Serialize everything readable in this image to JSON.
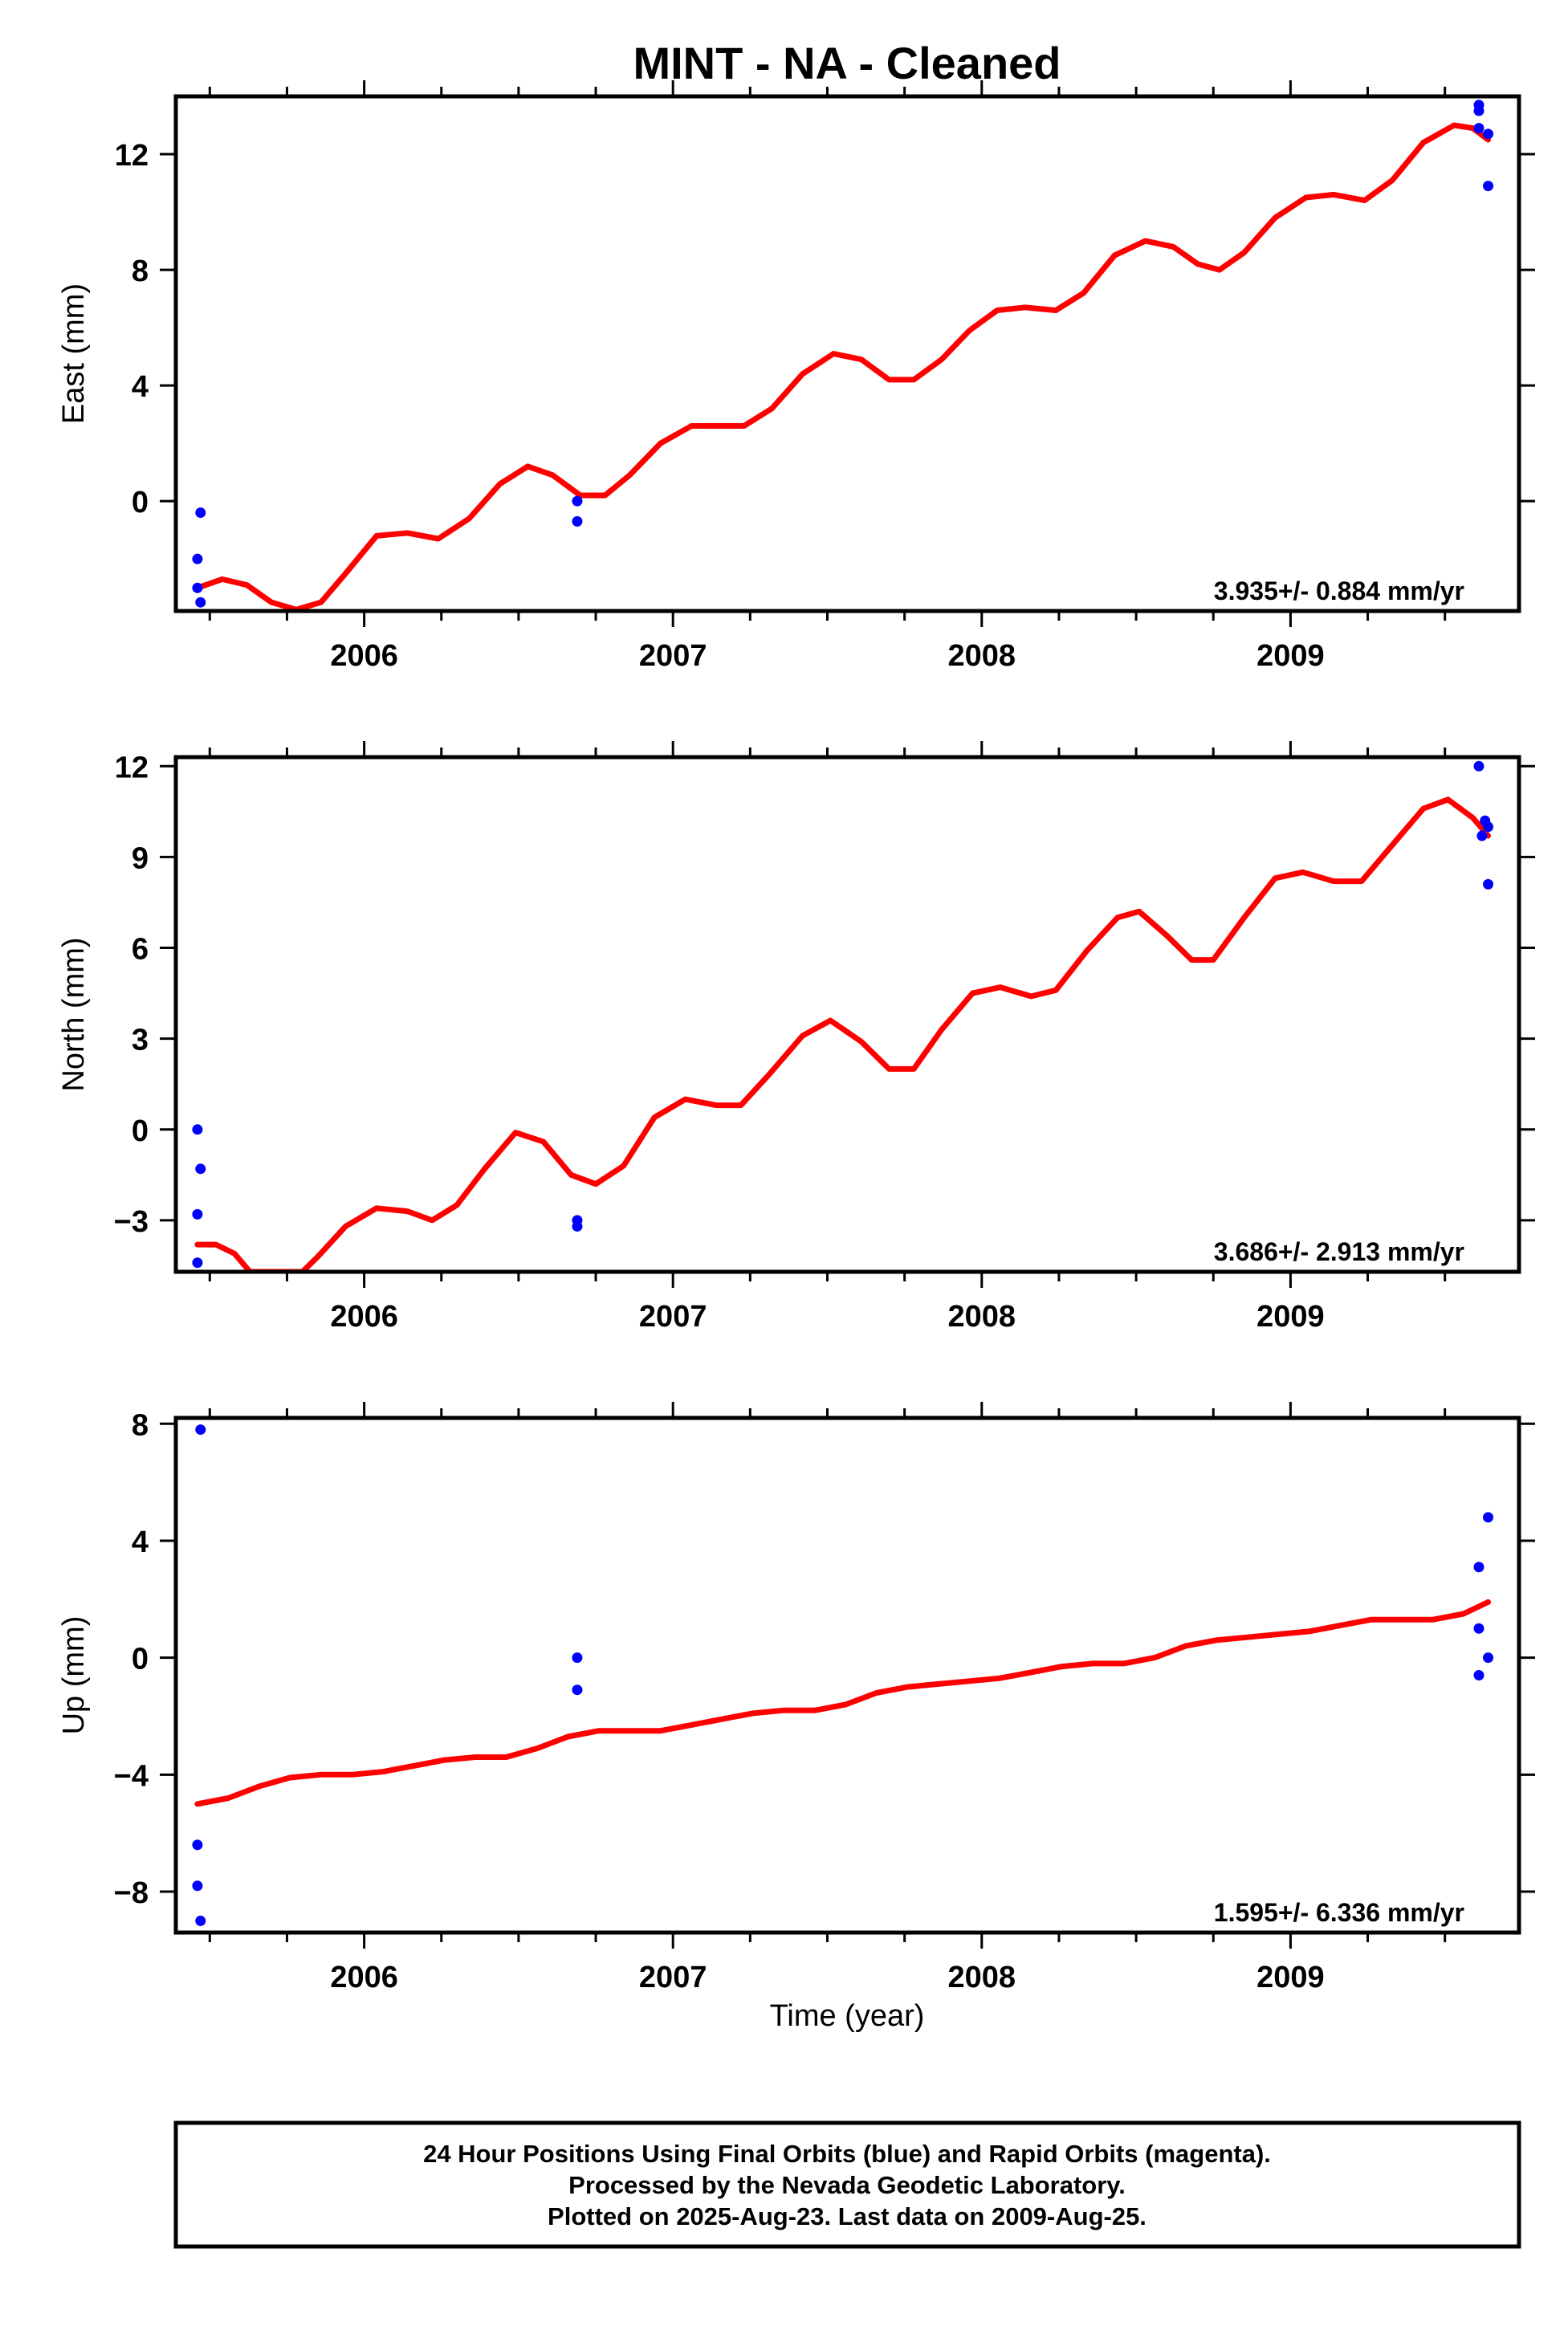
{
  "title": "MINT  - NA - Cleaned",
  "xlabel": "Time (year)",
  "footer": [
    "24 Hour Positions Using Final Orbits (blue) and Rapid Orbits (magenta).",
    "Processed by the Nevada Geodetic Laboratory.",
    "Plotted on 2025-Aug-23. Last data on 2009-Aug-25."
  ],
  "colors": {
    "final_orbits": "#0000ff",
    "model_fit": "#ff0000",
    "frame": "#000000"
  },
  "chart_data": [
    {
      "type": "scatter",
      "ylabel": "East (mm)",
      "rate_label": "3.935+/- 0.884 mm/yr",
      "xlim": [
        2005.39,
        2009.74
      ],
      "ylim": [
        -3.8,
        14.0
      ],
      "x_ticks": [
        2006,
        2007,
        2008,
        2009
      ],
      "y_ticks": [
        12,
        8,
        4,
        0
      ],
      "points": [
        [
          2005.47,
          -0.4
        ],
        [
          2005.46,
          -2.0
        ],
        [
          2005.46,
          -3.0
        ],
        [
          2005.47,
          -3.5
        ],
        [
          2006.69,
          0.0
        ],
        [
          2006.69,
          -0.7
        ],
        [
          2009.61,
          13.7
        ],
        [
          2009.61,
          13.5
        ],
        [
          2009.61,
          12.9
        ],
        [
          2009.64,
          12.7
        ],
        [
          2009.64,
          10.9
        ]
      ],
      "fit": [
        [
          2005.46,
          -3.0
        ],
        [
          2005.54,
          -2.7
        ],
        [
          2005.62,
          -2.9
        ],
        [
          2005.7,
          -3.5
        ],
        [
          2005.78,
          -3.75
        ],
        [
          2005.86,
          -3.5
        ],
        [
          2005.94,
          -2.5
        ],
        [
          2006.04,
          -1.2
        ],
        [
          2006.14,
          -1.1
        ],
        [
          2006.24,
          -1.3
        ],
        [
          2006.34,
          -0.6
        ],
        [
          2006.44,
          0.6
        ],
        [
          2006.53,
          1.2
        ],
        [
          2006.61,
          0.9
        ],
        [
          2006.7,
          0.2
        ],
        [
          2006.78,
          0.2
        ],
        [
          2006.86,
          0.9
        ],
        [
          2006.96,
          2.0
        ],
        [
          2007.06,
          2.6
        ],
        [
          2007.14,
          2.6
        ],
        [
          2007.23,
          2.6
        ],
        [
          2007.32,
          3.2
        ],
        [
          2007.42,
          4.4
        ],
        [
          2007.52,
          5.1
        ],
        [
          2007.61,
          4.9
        ],
        [
          2007.7,
          4.2
        ],
        [
          2007.78,
          4.2
        ],
        [
          2007.87,
          4.9
        ],
        [
          2007.96,
          5.9
        ],
        [
          2008.05,
          6.6
        ],
        [
          2008.14,
          6.7
        ],
        [
          2008.24,
          6.6
        ],
        [
          2008.33,
          7.2
        ],
        [
          2008.43,
          8.5
        ],
        [
          2008.53,
          9.0
        ],
        [
          2008.62,
          8.8
        ],
        [
          2008.7,
          8.2
        ],
        [
          2008.77,
          8.0
        ],
        [
          2008.85,
          8.6
        ],
        [
          2008.95,
          9.8
        ],
        [
          2009.05,
          10.5
        ],
        [
          2009.14,
          10.6
        ],
        [
          2009.24,
          10.4
        ],
        [
          2009.33,
          11.1
        ],
        [
          2009.43,
          12.4
        ],
        [
          2009.53,
          13.0
        ],
        [
          2009.59,
          12.9
        ],
        [
          2009.64,
          12.5
        ]
      ]
    },
    {
      "type": "scatter",
      "ylabel": "North (mm)",
      "rate_label": "3.686+/- 2.913 mm/yr",
      "xlim": [
        2005.39,
        2009.74
      ],
      "ylim": [
        -4.7,
        12.3
      ],
      "x_ticks": [
        2006,
        2007,
        2008,
        2009
      ],
      "y_ticks": [
        12,
        9,
        6,
        3,
        0,
        -3
      ],
      "points": [
        [
          2005.46,
          0.0
        ],
        [
          2005.47,
          -1.3
        ],
        [
          2005.46,
          -2.8
        ],
        [
          2005.46,
          -4.4
        ],
        [
          2006.69,
          -3.0
        ],
        [
          2006.69,
          -3.2
        ],
        [
          2009.61,
          12.0
        ],
        [
          2009.63,
          10.2
        ],
        [
          2009.64,
          10.0
        ],
        [
          2009.62,
          9.7
        ],
        [
          2009.64,
          8.1
        ]
      ],
      "fit": [
        [
          2005.46,
          -3.8
        ],
        [
          2005.52,
          -3.8
        ],
        [
          2005.58,
          -4.1
        ],
        [
          2005.63,
          -4.7
        ],
        [
          2005.8,
          -4.7
        ],
        [
          2005.85,
          -4.2
        ],
        [
          2005.94,
          -3.2
        ],
        [
          2006.04,
          -2.6
        ],
        [
          2006.14,
          -2.7
        ],
        [
          2006.22,
          -3.0
        ],
        [
          2006.3,
          -2.5
        ],
        [
          2006.39,
          -1.3
        ],
        [
          2006.49,
          -0.1
        ],
        [
          2006.58,
          -0.4
        ],
        [
          2006.67,
          -1.5
        ],
        [
          2006.75,
          -1.8
        ],
        [
          2006.84,
          -1.2
        ],
        [
          2006.94,
          0.4
        ],
        [
          2007.04,
          1.0
        ],
        [
          2007.14,
          0.8
        ],
        [
          2007.22,
          0.8
        ],
        [
          2007.31,
          1.8
        ],
        [
          2007.42,
          3.1
        ],
        [
          2007.51,
          3.6
        ],
        [
          2007.61,
          2.9
        ],
        [
          2007.7,
          2.0
        ],
        [
          2007.78,
          2.0
        ],
        [
          2007.87,
          3.3
        ],
        [
          2007.97,
          4.5
        ],
        [
          2008.06,
          4.7
        ],
        [
          2008.16,
          4.4
        ],
        [
          2008.24,
          4.6
        ],
        [
          2008.34,
          5.9
        ],
        [
          2008.44,
          7.0
        ],
        [
          2008.51,
          7.2
        ],
        [
          2008.6,
          6.4
        ],
        [
          2008.68,
          5.6
        ],
        [
          2008.75,
          5.6
        ],
        [
          2008.85,
          7.0
        ],
        [
          2008.95,
          8.3
        ],
        [
          2009.04,
          8.5
        ],
        [
          2009.14,
          8.2
        ],
        [
          2009.23,
          8.2
        ],
        [
          2009.33,
          9.4
        ],
        [
          2009.43,
          10.6
        ],
        [
          2009.51,
          10.9
        ],
        [
          2009.59,
          10.3
        ],
        [
          2009.64,
          9.7
        ]
      ]
    },
    {
      "type": "scatter",
      "ylabel": "Up (mm)",
      "rate_label": "1.595+/- 6.336 mm/yr",
      "xlim": [
        2005.39,
        2009.74
      ],
      "ylim": [
        -9.4,
        8.2
      ],
      "x_ticks": [
        2006,
        2007,
        2008,
        2009
      ],
      "y_ticks": [
        8,
        4,
        0,
        -4,
        -8
      ],
      "points": [
        [
          2005.47,
          7.8
        ],
        [
          2005.46,
          -6.4
        ],
        [
          2005.46,
          -7.8
        ],
        [
          2005.47,
          -9.0
        ],
        [
          2006.69,
          0.0
        ],
        [
          2006.69,
          -1.1
        ],
        [
          2009.64,
          4.8
        ],
        [
          2009.61,
          3.1
        ],
        [
          2009.61,
          1.0
        ],
        [
          2009.64,
          0.0
        ],
        [
          2009.61,
          -0.6
        ]
      ],
      "fit": [
        [
          2005.46,
          -5.0
        ],
        [
          2005.56,
          -4.8
        ],
        [
          2005.66,
          -4.4
        ],
        [
          2005.76,
          -4.1
        ],
        [
          2005.86,
          -4.0
        ],
        [
          2005.96,
          -4.0
        ],
        [
          2006.06,
          -3.9
        ],
        [
          2006.16,
          -3.7
        ],
        [
          2006.26,
          -3.5
        ],
        [
          2006.36,
          -3.4
        ],
        [
          2006.46,
          -3.4
        ],
        [
          2006.56,
          -3.1
        ],
        [
          2006.66,
          -2.7
        ],
        [
          2006.76,
          -2.5
        ],
        [
          2006.86,
          -2.5
        ],
        [
          2006.96,
          -2.5
        ],
        [
          2007.06,
          -2.3
        ],
        [
          2007.16,
          -2.1
        ],
        [
          2007.26,
          -1.9
        ],
        [
          2007.36,
          -1.8
        ],
        [
          2007.46,
          -1.8
        ],
        [
          2007.56,
          -1.6
        ],
        [
          2007.66,
          -1.2
        ],
        [
          2007.76,
          -1.0
        ],
        [
          2007.86,
          -0.9
        ],
        [
          2007.96,
          -0.8
        ],
        [
          2008.06,
          -0.7
        ],
        [
          2008.16,
          -0.5
        ],
        [
          2008.26,
          -0.3
        ],
        [
          2008.36,
          -0.2
        ],
        [
          2008.46,
          -0.2
        ],
        [
          2008.56,
          0.0
        ],
        [
          2008.66,
          0.4
        ],
        [
          2008.76,
          0.6
        ],
        [
          2008.86,
          0.7
        ],
        [
          2008.96,
          0.8
        ],
        [
          2009.06,
          0.9
        ],
        [
          2009.16,
          1.1
        ],
        [
          2009.26,
          1.3
        ],
        [
          2009.36,
          1.3
        ],
        [
          2009.46,
          1.3
        ],
        [
          2009.56,
          1.5
        ],
        [
          2009.64,
          1.9
        ]
      ]
    }
  ]
}
